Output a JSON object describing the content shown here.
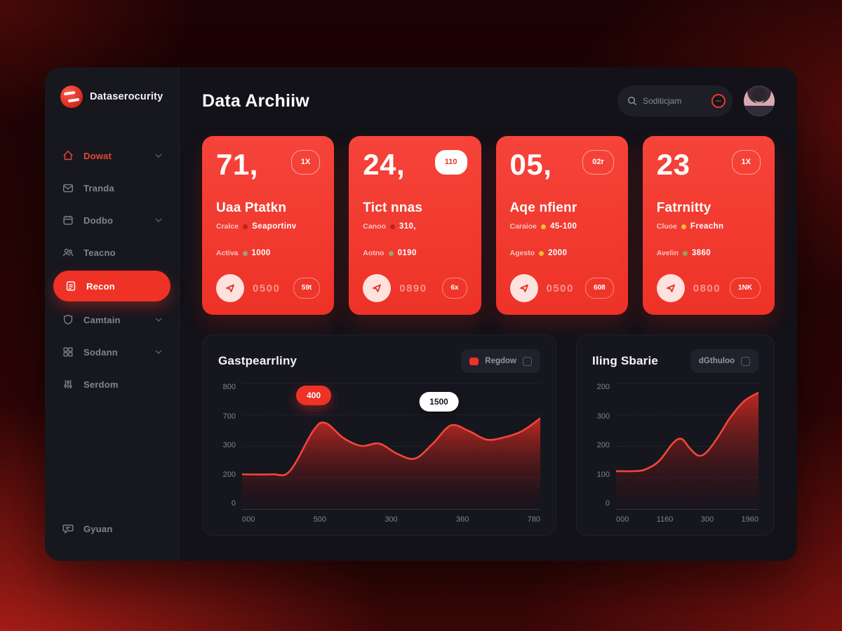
{
  "brand": {
    "name": "Dataserocurity"
  },
  "header": {
    "title": "Data Archiiw",
    "search_placeholder": "Soditicjam"
  },
  "sidebar": {
    "items": [
      {
        "label": "Dowat",
        "icon": "home-icon",
        "chevron": true
      },
      {
        "label": "Tranda",
        "icon": "mail-icon",
        "chevron": false
      },
      {
        "label": "Dodbo",
        "icon": "calendar-icon",
        "chevron": true
      },
      {
        "label": "Teacno",
        "icon": "users-icon",
        "chevron": false
      },
      {
        "label": "Recon",
        "icon": "report-icon",
        "chevron": false
      },
      {
        "label": "Camtain",
        "icon": "shield-icon",
        "chevron": true
      },
      {
        "label": "Sodann",
        "icon": "apps-icon",
        "chevron": true
      },
      {
        "label": "Serdom",
        "icon": "sliders-icon",
        "chevron": false
      }
    ],
    "footer_item": {
      "label": "Gyuan",
      "icon": "chat-icon"
    }
  },
  "cards": [
    {
      "value": "71,",
      "badge": "1X",
      "title": "Uaa Ptatkn",
      "sub_label": "Cralce",
      "sub_value": "Seaportinv",
      "sub_dot_color": "#b8251a",
      "active_label": "Activa",
      "active_value": "1000",
      "active_dot_color": "#95a37b",
      "bottom_value": "0500",
      "bottom_badge": "59t"
    },
    {
      "value": "24,",
      "badge": "110",
      "title": "Tict nnas",
      "sub_label": "Canoo",
      "sub_value": "310,",
      "sub_dot_color": "#b8251a",
      "active_label": "Aotno",
      "active_value": "0190",
      "active_dot_color": "#95a37b",
      "bottom_value": "0890",
      "bottom_badge": "6x"
    },
    {
      "value": "05,",
      "badge": "02r",
      "title": "Aqe nfienr",
      "sub_label": "Caraioe",
      "sub_value": "45-100",
      "sub_dot_color": "#f5bd2f",
      "active_label": "Agesto",
      "active_value": "2000",
      "active_dot_color": "#f5bd2f",
      "bottom_value": "0500",
      "bottom_badge": "608"
    },
    {
      "value": "23",
      "badge": "1X",
      "title": "Fatrnitty",
      "sub_label": "Cluoe",
      "sub_value": "Freachn",
      "sub_dot_color": "#f5bd2f",
      "active_label": "Avelin",
      "active_value": "3860",
      "active_dot_color": "#8ba35f",
      "bottom_value": "0800",
      "bottom_badge": "1NK"
    }
  ],
  "chart_data": [
    {
      "type": "area",
      "title": "Gastpearrliny",
      "legend": "Regdow",
      "ylabel": "",
      "xlabel": "",
      "yticks": [
        "800",
        "700",
        "300",
        "200",
        "0"
      ],
      "xticks": [
        "000",
        "500",
        "300",
        "360",
        "780"
      ],
      "ymax": 800,
      "grid": "dotted-horizontal",
      "x_pct": [
        0,
        10,
        16,
        24,
        28,
        34,
        40,
        46,
        52,
        58,
        64,
        70,
        76,
        82,
        88,
        94,
        100
      ],
      "values": [
        220,
        220,
        240,
        500,
        545,
        450,
        400,
        415,
        350,
        320,
        415,
        530,
        495,
        440,
        455,
        495,
        575
      ],
      "annotations": [
        {
          "text": "400",
          "style": "red"
        },
        {
          "text": "1500",
          "style": "white"
        }
      ],
      "line_color": "#f4453a",
      "fill_top": "rgba(211,44,36,0.88)",
      "fill_bottom": "rgba(58,10,14,0.10)"
    },
    {
      "type": "area",
      "title": "Iling Sbarie",
      "legend": "dGthuloo",
      "ylabel": "",
      "xlabel": "",
      "yticks": [
        "200",
        "300",
        "200",
        "100",
        "0"
      ],
      "xticks": [
        "000",
        "1160",
        "300",
        "1960"
      ],
      "ymax": 450,
      "grid": "dotted-horizontal",
      "x_pct": [
        0,
        12,
        20,
        30,
        40,
        46,
        52,
        58,
        64,
        72,
        80,
        90,
        100
      ],
      "values": [
        135,
        135,
        140,
        170,
        235,
        250,
        215,
        190,
        205,
        260,
        325,
        385,
        415
      ],
      "annotations": [],
      "line_color": "#f4453a",
      "fill_top": "rgba(211,44,36,0.88)",
      "fill_bottom": "rgba(58,10,14,0.10)"
    }
  ]
}
